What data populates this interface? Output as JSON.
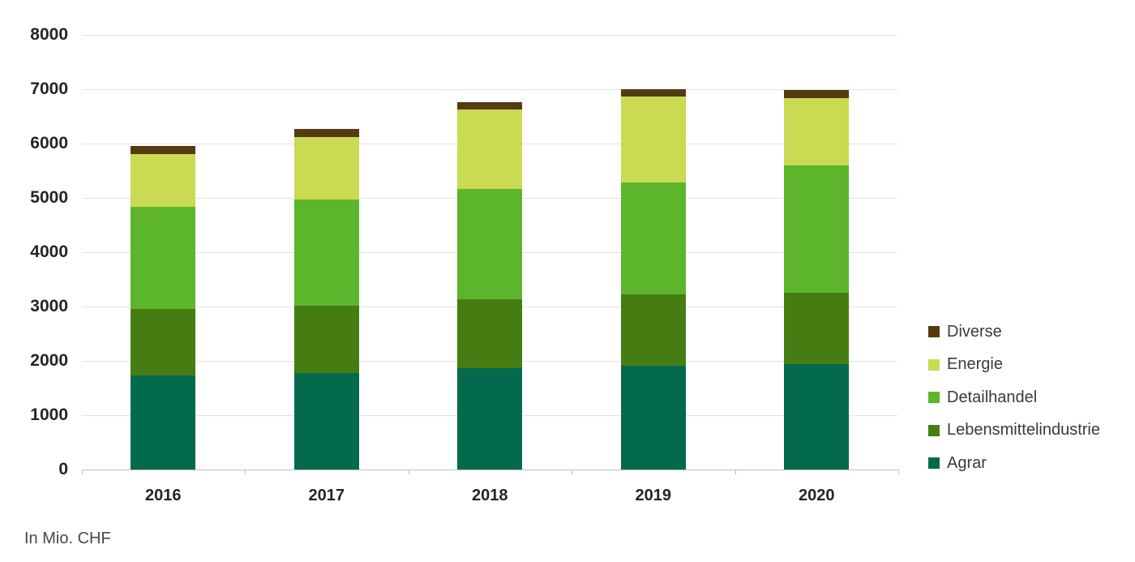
{
  "chart_data": {
    "type": "bar",
    "stacked": true,
    "title": "",
    "xlabel": "",
    "ylabel": "",
    "footnote": "In Mio. CHF",
    "unit": "Mio. CHF",
    "grid": "horizontal",
    "legend_position": "right",
    "ylim": [
      0,
      8000
    ],
    "ytick_step": 1000,
    "yticks": [
      "8000",
      "7000",
      "6000",
      "5000",
      "4000",
      "3000",
      "2000",
      "1000",
      "0"
    ],
    "categories": [
      "2016",
      "2017",
      "2018",
      "2019",
      "2020"
    ],
    "series": [
      {
        "name": "Agrar",
        "color": "#046a4e",
        "values": [
          1730,
          1775,
          1870,
          1915,
          1940
        ]
      },
      {
        "name": "Lebensmittelindustrie",
        "color": "#457d13",
        "values": [
          1230,
          1235,
          1270,
          1305,
          1320
        ]
      },
      {
        "name": "Detailhandel",
        "color": "#5db52c",
        "values": [
          1870,
          1960,
          2020,
          2060,
          2330
        ]
      },
      {
        "name": "Energie",
        "color": "#cada52",
        "values": [
          970,
          1150,
          1470,
          1580,
          1240
        ]
      },
      {
        "name": "Diverse",
        "color": "#543b10",
        "values": [
          150,
          150,
          130,
          145,
          150
        ]
      }
    ],
    "totals": [
      5950,
      6270,
      6760,
      7000,
      6980
    ],
    "legend_order": [
      "Diverse",
      "Energie",
      "Detailhandel",
      "Lebensmittelindustrie",
      "Agrar"
    ],
    "colors": {
      "gridline": "#e3e3e3",
      "axis": "#bfbfbf",
      "tick_label": "#252525",
      "legend_text": "#3a3a3a",
      "footnote_text": "#474747"
    }
  }
}
